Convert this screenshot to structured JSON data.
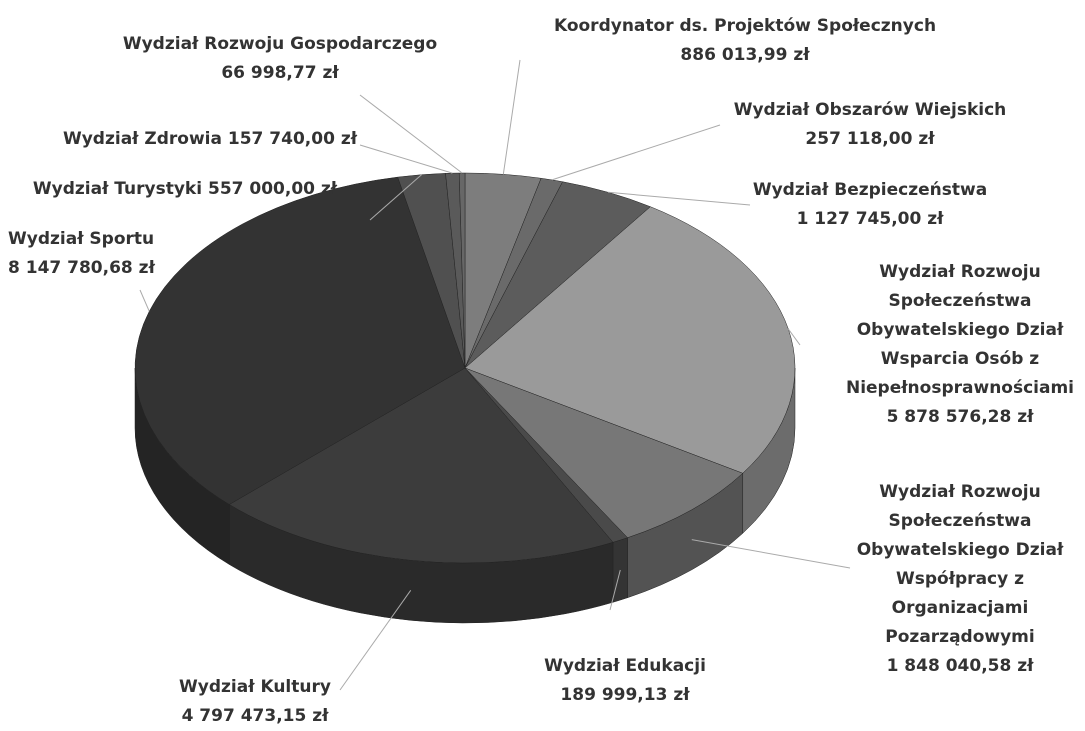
{
  "chart_data": {
    "type": "pie",
    "categories": [
      "Koordynator ds. Projektów Społecznych",
      "Wydział Obszarów Wiejskich",
      "Wydział Bezpieczeństwa",
      "Wydział Rozwoju Społeczeństwa Obywatelskiego Dział Wsparcia Osób z Niepełnosprawnościami",
      "Wydział Rozwoju Społeczeństwa Obywatelskiego Dział Współpracy z Organizacjami Pozarządowymi",
      "Wydział Edukacji",
      "Wydział Kultury",
      "Wydział Sportu",
      "Wydział Turystyki",
      "Wydział Zdrowia",
      "Wydział Rozwoju Gospodarczego"
    ],
    "values": [
      886013.99,
      257118.0,
      1127745.0,
      5878576.28,
      1848040.58,
      189999.13,
      4797473.15,
      8147780.68,
      557000.0,
      157740.0,
      66998.77
    ],
    "value_labels": [
      "886 013,99 zł",
      "257 118,00 zł",
      "1 127 745,00 zł",
      "5 878 576,28 zł",
      "1 848 040,58 zł",
      "189 999,13 zł",
      "4 797 473,15 zł",
      "8 147 780,68 zł",
      "557 000,00 zł",
      "157 740,00 zł",
      "66 998,77 zł"
    ],
    "colors": [
      "#7d7d7d",
      "#6a6a6a",
      "#5c5c5c",
      "#9a9a9a",
      "#777777",
      "#4a4a4a",
      "#3c3c3c",
      "#333333",
      "#505050",
      "#5a5a5a",
      "#676767"
    ]
  }
}
